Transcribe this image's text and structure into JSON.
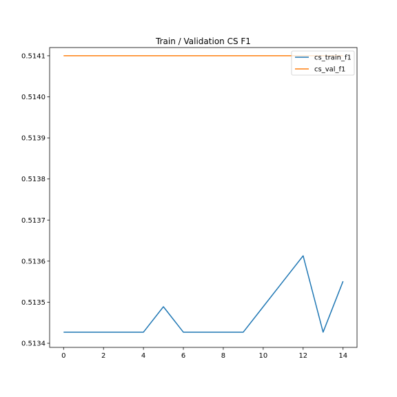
{
  "chart_data": {
    "type": "line",
    "title": "Train / Validation CS F1",
    "xlabel": "",
    "ylabel": "",
    "x": [
      0,
      1,
      2,
      3,
      4,
      5,
      6,
      7,
      8,
      9,
      10,
      11,
      12,
      13,
      14
    ],
    "xlim": [
      -0.7,
      14.7
    ],
    "ylim": [
      0.51339,
      0.51412
    ],
    "x_ticks": [
      0,
      2,
      4,
      6,
      8,
      10,
      12,
      14
    ],
    "y_ticks": [
      0.5134,
      0.5135,
      0.5136,
      0.5137,
      0.5138,
      0.5139,
      0.514,
      0.5141
    ],
    "y_tick_labels": [
      "0.5134",
      "0.5135",
      "0.5136",
      "0.5137",
      "0.5138",
      "0.5139",
      "0.5140",
      "0.5141"
    ],
    "grid": false,
    "legend_position": "upper-right",
    "series": [
      {
        "name": "cs_train_f1",
        "color": "#1f77b4",
        "values": [
          0.513427,
          0.513427,
          0.513427,
          0.513427,
          0.513427,
          0.513489,
          0.513427,
          0.513427,
          0.513427,
          0.513427,
          0.513489,
          0.513551,
          0.513613,
          0.513427,
          0.513551
        ]
      },
      {
        "name": "cs_val_f1",
        "color": "#ff7f0e",
        "values": [
          0.5141,
          0.5141,
          0.5141,
          0.5141,
          0.5141,
          0.5141,
          0.5141,
          0.5141,
          0.5141,
          0.5141,
          0.5141,
          0.5141,
          0.5141,
          0.5141,
          0.5141
        ]
      }
    ]
  }
}
